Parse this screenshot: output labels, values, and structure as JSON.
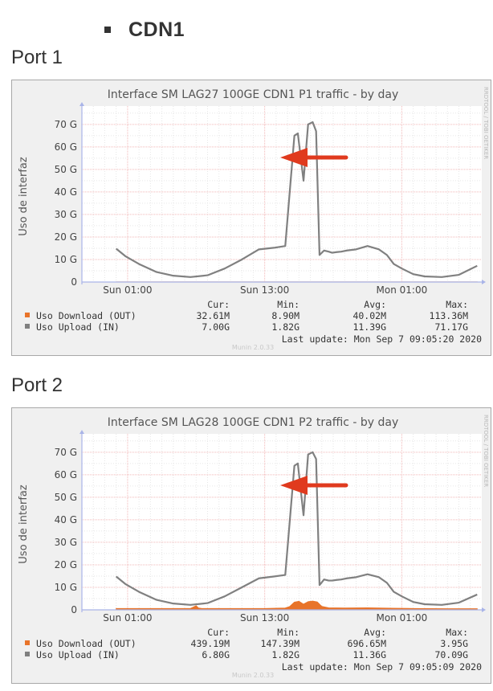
{
  "section": {
    "title": "CDN1"
  },
  "ports": [
    {
      "heading": "Port 1",
      "side_text": "RRDTOOL / TOBI OETIKER",
      "munin_version": "Munin 2.0.33",
      "legend": {
        "headers": [
          "Cur:",
          "Min:",
          "Avg:",
          "Max:"
        ],
        "rows": [
          {
            "label": "Uso Download (OUT)",
            "color": "#e8742a",
            "cur": "32.61M",
            "min": "8.90M",
            "avg": "40.02M",
            "max": "113.36M"
          },
          {
            "label": "Uso Upload (IN)",
            "color": "#808080",
            "cur": "7.00G",
            "min": "1.82G",
            "avg": "11.39G",
            "max": "71.17G"
          }
        ],
        "last_update": "Last update: Mon Sep  7 09:05:20 2020"
      },
      "annotation": {
        "type": "arrow",
        "color": "#e03a1e"
      },
      "chart_data": {
        "type": "area",
        "title": "Interface  SM LAG27 100GE CDN1 P1 traffic - by day",
        "ylabel": "Uso de interfaz",
        "xlabel": "",
        "ylim": [
          0,
          76
        ],
        "y_ticks": [
          0,
          10,
          20,
          30,
          40,
          50,
          60,
          70
        ],
        "y_tick_labels": [
          "0",
          "10 G",
          "20 G",
          "30 G",
          "40 G",
          "50 G",
          "60 G",
          "70 G"
        ],
        "xlim": [
          0,
          35
        ],
        "x_ticks": [
          4,
          16,
          28
        ],
        "x_tick_labels": [
          "Sun 01:00",
          "Sun 13:00",
          "Mon 01:00"
        ],
        "grid": true,
        "series": [
          {
            "name": "Uso Upload (IN)",
            "color": "#808080",
            "type": "line",
            "x": [
              3,
              3.8,
              5,
              6.5,
              8,
              9.5,
              11,
              12.5,
              14,
              15.5,
              16.8,
              17.8,
              18.6,
              18.9,
              19.4,
              19.8,
              20.2,
              20.5,
              20.8,
              21.2,
              21.6,
              21.9,
              22.3,
              22.7,
              23.2,
              24,
              25,
              26,
              26.7,
              27.3,
              28,
              29,
              30,
              31.5,
              33,
              34.6
            ],
            "y": [
              14.8,
              11.5,
              8,
              4.5,
              2.8,
              2.2,
              3,
              6,
              10,
              14.5,
              15.2,
              16,
              65,
              66,
              45,
              70,
              71,
              67,
              12,
              14,
              13.5,
              13,
              13.3,
              13.5,
              14,
              14.5,
              16,
              14.5,
              12,
              8,
              6,
              3.5,
              2.5,
              2.2,
              3.2,
              7.2
            ]
          },
          {
            "name": "Uso Download (OUT)",
            "color": "#e8742a",
            "type": "area",
            "x": [
              3,
              34.6
            ],
            "y": [
              0.04,
              0.04
            ]
          }
        ]
      }
    },
    {
      "heading": "Port 2",
      "side_text": "RRDTOOL / TOBI OETIKER",
      "munin_version": "Munin 2.0.33",
      "legend": {
        "headers": [
          "Cur:",
          "Min:",
          "Avg:",
          "Max:"
        ],
        "rows": [
          {
            "label": "Uso Download (OUT)",
            "color": "#e8742a",
            "cur": "439.19M",
            "min": "147.39M",
            "avg": "696.65M",
            "max": "3.95G"
          },
          {
            "label": "Uso Upload (IN)",
            "color": "#808080",
            "cur": "6.80G",
            "min": "1.82G",
            "avg": "11.36G",
            "max": "70.09G"
          }
        ],
        "last_update": "Last update: Mon Sep  7 09:05:09 2020"
      },
      "annotation": {
        "type": "arrow",
        "color": "#e03a1e"
      },
      "chart_data": {
        "type": "area",
        "title": "Interface  SM LAG28 100GE CDN1 P2 traffic - by day",
        "ylabel": "Uso de interfaz",
        "xlabel": "",
        "ylim": [
          0,
          76
        ],
        "y_ticks": [
          0,
          10,
          20,
          30,
          40,
          50,
          60,
          70
        ],
        "y_tick_labels": [
          "0",
          "10 G",
          "20 G",
          "30 G",
          "40 G",
          "50 G",
          "60 G",
          "70 G"
        ],
        "xlim": [
          0,
          35
        ],
        "x_ticks": [
          4,
          16,
          28
        ],
        "x_tick_labels": [
          "Sun 01:00",
          "Sun 13:00",
          "Mon 01:00"
        ],
        "grid": true,
        "series": [
          {
            "name": "Uso Upload (IN)",
            "color": "#808080",
            "type": "line",
            "x": [
              3,
              3.8,
              5,
              6.5,
              8,
              9.5,
              11,
              12.5,
              14,
              15.5,
              16.8,
              17.8,
              18.6,
              18.9,
              19.4,
              19.8,
              20.2,
              20.5,
              20.8,
              21.2,
              21.6,
              21.9,
              22.3,
              22.7,
              23.2,
              24,
              25,
              26,
              26.7,
              27.3,
              28,
              29,
              30,
              31.5,
              33,
              34.6
            ],
            "y": [
              14.8,
              11.5,
              8,
              4.5,
              2.8,
              2.2,
              3,
              6,
              10,
              14,
              14.8,
              15.5,
              64,
              65,
              42,
              69,
              70,
              67,
              11,
              13.5,
              13,
              13,
              13.3,
              13.5,
              14,
              14.5,
              15.8,
              14.5,
              12,
              8,
              6,
              3.5,
              2.5,
              2.2,
              3.2,
              6.8
            ]
          },
          {
            "name": "Uso Download (OUT)",
            "color": "#e8742a",
            "type": "area",
            "x": [
              3,
              9.5,
              10,
              10.2,
              10.5,
              13,
              16,
              17.8,
              18.2,
              18.6,
              19,
              19.4,
              19.8,
              20.2,
              20.6,
              21,
              21.6,
              23,
              25,
              27,
              29,
              32,
              34.6
            ],
            "y": [
              0.6,
              0.6,
              1.8,
              0.8,
              0.6,
              0.6,
              0.6,
              0.8,
              1.5,
              3.4,
              3.8,
              2.5,
              3.6,
              3.9,
              3.5,
              1.5,
              0.9,
              0.8,
              0.9,
              0.7,
              0.6,
              0.5,
              0.5
            ]
          }
        ]
      }
    }
  ]
}
